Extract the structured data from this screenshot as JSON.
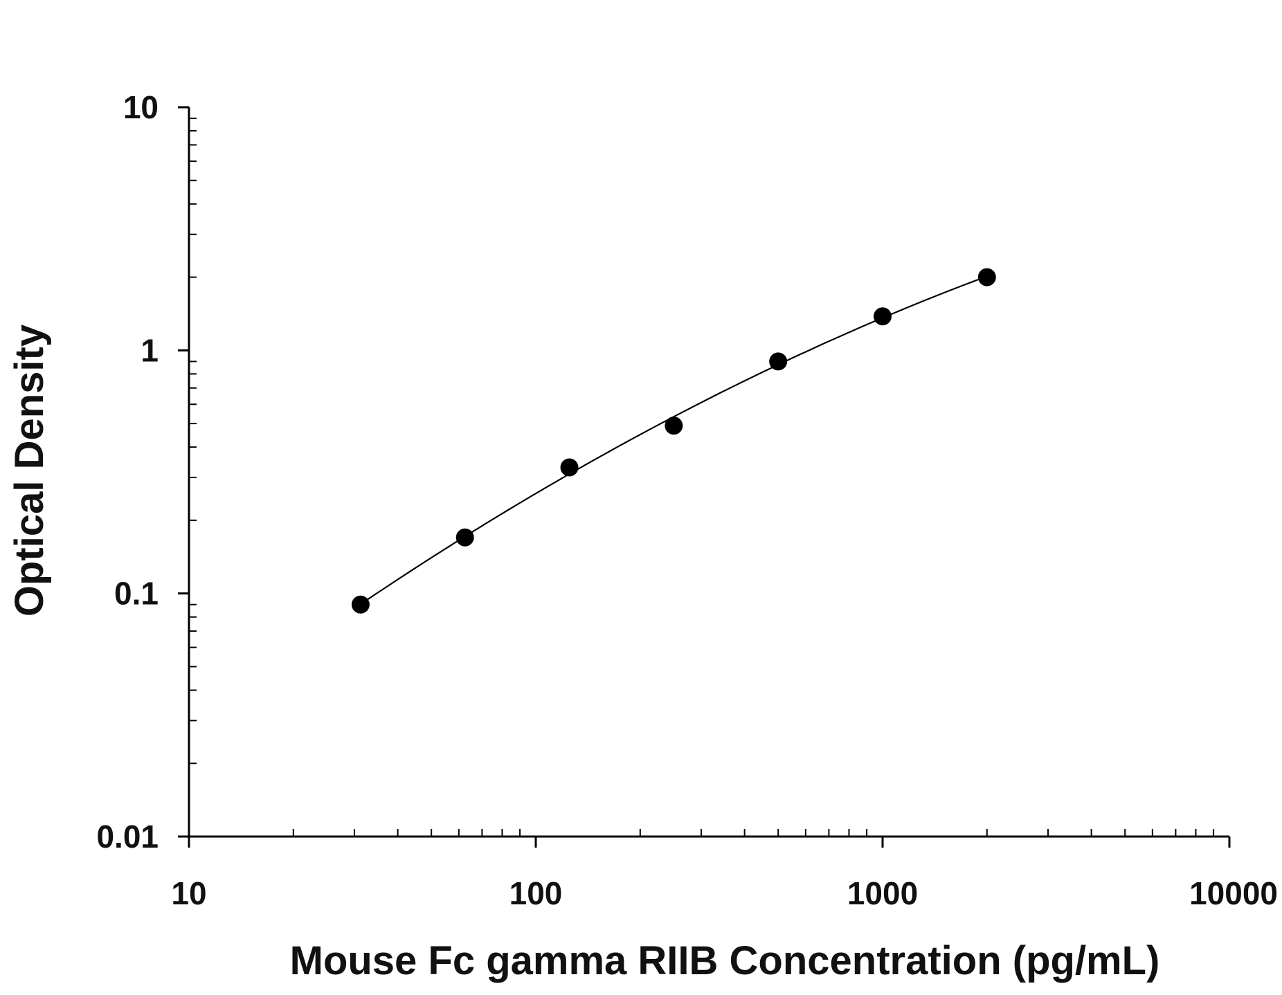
{
  "chart_data": {
    "type": "scatter",
    "xlabel": "Mouse Fc gamma RIIB Concentration (pg/mL)",
    "ylabel": "Optical Density",
    "x_scale": "log",
    "y_scale": "log",
    "xlim": [
      10,
      10000
    ],
    "ylim": [
      0.01,
      10
    ],
    "x_ticks": [
      10,
      100,
      1000,
      10000
    ],
    "x_tick_labels": [
      "10",
      "100",
      "1000",
      "10000"
    ],
    "y_ticks": [
      0.01,
      0.1,
      1,
      10
    ],
    "y_tick_labels": [
      "0.01",
      "0.1",
      "1",
      "10"
    ],
    "grid": false,
    "series": [
      {
        "x": [
          31.25,
          62.5,
          125,
          250,
          500,
          1000,
          2000
        ],
        "y": [
          0.09,
          0.17,
          0.33,
          0.49,
          0.9,
          1.38,
          2.0
        ],
        "markers": true,
        "fit_line": true
      }
    ],
    "colors": {
      "marker": "#000000",
      "line": "#000000",
      "axis": "#000000"
    }
  }
}
